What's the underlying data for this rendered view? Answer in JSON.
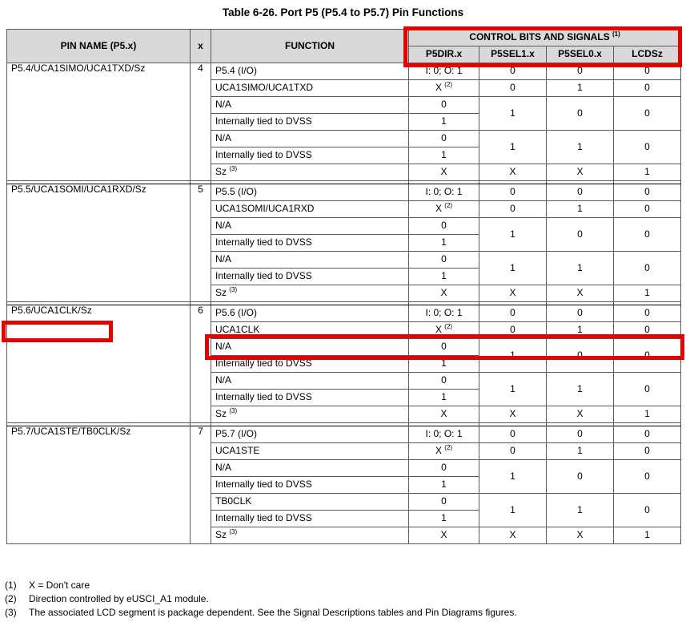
{
  "title": "Table 6-26. Port P5 (P5.4 to P5.7) Pin Functions",
  "colors": {
    "highlight_red": "#e60000",
    "header_bg": "#d9d9d9"
  },
  "header": {
    "pin_name": "PIN NAME (P5.x)",
    "x": "x",
    "function": "FUNCTION",
    "control_bits": "CONTROL BITS AND SIGNALS ",
    "control_bits_sup": "(1)",
    "sub_columns": [
      "P5DIR.x",
      "P5SEL1.x",
      "P5SEL0.x",
      "LCDSz"
    ]
  },
  "groups": [
    {
      "pin": "P5.4/UCA1SIMO/UCA1TXD/Sz",
      "x": "4",
      "rows": [
        {
          "fn": "P5.4 (I/O)",
          "dir": "I: 0; O: 1",
          "span": 1,
          "sel1": "0",
          "sel0": "0",
          "lcds": "0"
        },
        {
          "fn": "UCA1SIMO/UCA1TXD",
          "dir": "X ",
          "dirSup": "(2)",
          "span": 1,
          "sel1": "0",
          "sel0": "1",
          "lcds": "0"
        },
        {
          "fn": "N/A",
          "dir": "0",
          "span": 2,
          "sel1": "1",
          "sel0": "0",
          "lcds": "0"
        },
        {
          "fn": "Internally tied to DVSS",
          "dir": "1",
          "span": 0
        },
        {
          "fn": "N/A",
          "dir": "0",
          "span": 2,
          "sel1": "1",
          "sel0": "1",
          "lcds": "0"
        },
        {
          "fn": "Internally tied to DVSS",
          "dir": "1",
          "span": 0
        },
        {
          "fn": "Sz ",
          "fnSup": "(3)",
          "dir": "X",
          "span": 1,
          "sel1": "X",
          "sel0": "X",
          "lcds": "1"
        }
      ]
    },
    {
      "pin": "P5.5/UCA1SOMI/UCA1RXD/Sz",
      "x": "5",
      "rows": [
        {
          "fn": "P5.5 (I/O)",
          "dir": "I: 0; O: 1",
          "span": 1,
          "sel1": "0",
          "sel0": "0",
          "lcds": "0"
        },
        {
          "fn": "UCA1SOMI/UCA1RXD",
          "dir": "X ",
          "dirSup": "(2)",
          "span": 1,
          "sel1": "0",
          "sel0": "1",
          "lcds": "0"
        },
        {
          "fn": "N/A",
          "dir": "0",
          "span": 2,
          "sel1": "1",
          "sel0": "0",
          "lcds": "0"
        },
        {
          "fn": "Internally tied to DVSS",
          "dir": "1",
          "span": 0
        },
        {
          "fn": "N/A",
          "dir": "0",
          "span": 2,
          "sel1": "1",
          "sel0": "1",
          "lcds": "0"
        },
        {
          "fn": "Internally tied to DVSS",
          "dir": "1",
          "span": 0
        },
        {
          "fn": "Sz ",
          "fnSup": "(3)",
          "dir": "X",
          "span": 1,
          "sel1": "X",
          "sel0": "X",
          "lcds": "1"
        }
      ]
    },
    {
      "pin": "P5.6/UCA1CLK/Sz",
      "x": "6",
      "rows": [
        {
          "fn": "P5.6 (I/O)",
          "dir": "I: 0; O: 1",
          "span": 1,
          "sel1": "0",
          "sel0": "0",
          "lcds": "0"
        },
        {
          "fn": "UCA1CLK",
          "dir": "X ",
          "dirSup": "(2)",
          "span": 1,
          "sel1": "0",
          "sel0": "1",
          "lcds": "0"
        },
        {
          "fn": "N/A",
          "dir": "0",
          "span": 2,
          "sel1": "1",
          "sel0": "0",
          "lcds": "0"
        },
        {
          "fn": "Internally tied to DVSS",
          "dir": "1",
          "span": 0
        },
        {
          "fn": "N/A",
          "dir": "0",
          "span": 2,
          "sel1": "1",
          "sel0": "1",
          "lcds": "0"
        },
        {
          "fn": "Internally tied to DVSS",
          "dir": "1",
          "span": 0
        },
        {
          "fn": "Sz ",
          "fnSup": "(3)",
          "dir": "X",
          "span": 1,
          "sel1": "X",
          "sel0": "X",
          "lcds": "1"
        }
      ]
    },
    {
      "pin": "P5.7/UCA1STE/TB0CLK/Sz",
      "x": "7",
      "rows": [
        {
          "fn": "P5.7 (I/O)",
          "dir": "I: 0; O: 1",
          "span": 1,
          "sel1": "0",
          "sel0": "0",
          "lcds": "0"
        },
        {
          "fn": "UCA1STE",
          "dir": "X ",
          "dirSup": "(2)",
          "span": 1,
          "sel1": "0",
          "sel0": "1",
          "lcds": "0"
        },
        {
          "fn": "N/A",
          "dir": "0",
          "span": 2,
          "sel1": "1",
          "sel0": "0",
          "lcds": "0"
        },
        {
          "fn": "Internally tied to DVSS",
          "dir": "1",
          "span": 0
        },
        {
          "fn": "TB0CLK",
          "dir": "0",
          "span": 2,
          "sel1": "1",
          "sel0": "1",
          "lcds": "0"
        },
        {
          "fn": "Internally tied to DVSS",
          "dir": "1",
          "span": 0
        },
        {
          "fn": "Sz ",
          "fnSup": "(3)",
          "dir": "X",
          "span": 1,
          "sel1": "X",
          "sel0": "X",
          "lcds": "1"
        }
      ]
    }
  ],
  "footnotes": [
    {
      "num": "(1)",
      "text": "X = Don't care"
    },
    {
      "num": "(2)",
      "text": "Direction controlled by eUSCI_A1 module."
    },
    {
      "num": "(3)",
      "text": "The associated LCD segment is package dependent. See the Signal Descriptions tables and Pin Diagrams figures."
    }
  ]
}
